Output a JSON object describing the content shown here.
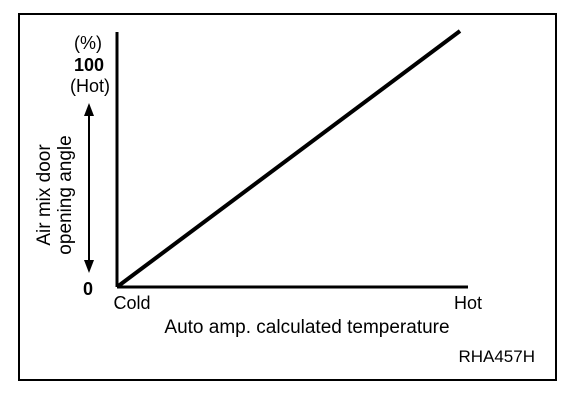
{
  "chart_data": {
    "type": "line",
    "xlabel": "Auto amp. calculated temperature",
    "ylabel_lines": [
      "Air mix door",
      "opening angle"
    ],
    "y_unit": "(%)",
    "x_tick_labels": [
      {
        "value": 0,
        "label": "Cold"
      },
      {
        "value": 100,
        "label": "Hot"
      }
    ],
    "y_tick_labels": [
      {
        "value": 0,
        "label": "0"
      },
      {
        "value": 100,
        "label": "100"
      }
    ],
    "y_top_sublabel": "(Hot)",
    "xlim": [
      0,
      100
    ],
    "ylim": [
      0,
      100
    ],
    "grid": false,
    "series": [
      {
        "x": [
          0,
          100
        ],
        "y": [
          0,
          100
        ]
      }
    ],
    "reference_code": "RHA457H"
  }
}
